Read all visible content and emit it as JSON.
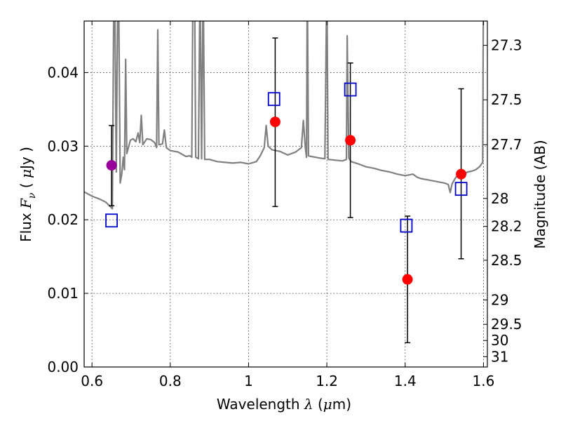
{
  "chart_data": {
    "type": "scatter",
    "xlabel": "Wavelength λ (μm)",
    "ylabel": "Flux F_ν (μJy)",
    "y2label": "Magnitude (AB)",
    "xlim": [
      0.58,
      1.61
    ],
    "ylim": [
      0.0,
      0.047
    ],
    "grid": true,
    "x_ticks": [
      0.6,
      0.8,
      1.0,
      1.2,
      1.4,
      1.6
    ],
    "x_tick_labels": [
      "0.6",
      "0.8",
      "1",
      "1.2",
      "1.4",
      "1.6"
    ],
    "y_ticks": [
      0.0,
      0.01,
      0.02,
      0.03,
      0.04
    ],
    "y_tick_labels": [
      "0.00",
      "0.01",
      "0.02",
      "0.03",
      "0.04"
    ],
    "right_ticks": [
      {
        "label": "27.3",
        "flux": 0.0437
      },
      {
        "label": "27.5",
        "flux": 0.0363
      },
      {
        "label": "27.7",
        "flux": 0.0302
      },
      {
        "label": "28",
        "flux": 0.0229
      },
      {
        "label": "28.2",
        "flux": 0.0191
      },
      {
        "label": "28.5",
        "flux": 0.0145
      },
      {
        "label": "29",
        "flux": 0.0091
      },
      {
        "label": "29.5",
        "flux": 0.0058
      },
      {
        "label": "30",
        "flux": 0.0036
      },
      {
        "label": "31",
        "flux": 0.0014
      }
    ],
    "observed_points": [
      {
        "x": 0.65,
        "y": 0.0274,
        "err_low": 0.0219,
        "err_high": 0.0328,
        "color": "#990099"
      },
      {
        "x": 1.068,
        "y": 0.0333,
        "err_low": 0.0218,
        "err_high": 0.0447,
        "color": "#ff0000"
      },
      {
        "x": 1.26,
        "y": 0.0308,
        "err_low": 0.0203,
        "err_high": 0.0413,
        "color": "#ff0000"
      },
      {
        "x": 1.406,
        "y": 0.0119,
        "err_low": 0.0033,
        "err_high": 0.0205,
        "color": "#ff0000"
      },
      {
        "x": 1.543,
        "y": 0.0262,
        "err_low": 0.0147,
        "err_high": 0.0378,
        "color": "#ff0000"
      }
    ],
    "model_points": [
      {
        "x": 0.65,
        "y": 0.0199
      },
      {
        "x": 1.065,
        "y": 0.0364
      },
      {
        "x": 1.26,
        "y": 0.0377
      },
      {
        "x": 1.403,
        "y": 0.0192
      },
      {
        "x": 1.543,
        "y": 0.0242
      }
    ],
    "spectrum_color": "#808080",
    "spectrum": [
      [
        0.58,
        0.0238
      ],
      [
        0.6,
        0.0232
      ],
      [
        0.62,
        0.0228
      ],
      [
        0.635,
        0.0224
      ],
      [
        0.645,
        0.0219
      ],
      [
        0.652,
        0.0215
      ],
      [
        0.656,
        0.052
      ],
      [
        0.658,
        0.052
      ],
      [
        0.662,
        0.0265
      ],
      [
        0.666,
        0.052
      ],
      [
        0.668,
        0.052
      ],
      [
        0.672,
        0.025
      ],
      [
        0.676,
        0.0262
      ],
      [
        0.68,
        0.0285
      ],
      [
        0.683,
        0.0268
      ],
      [
        0.686,
        0.0418
      ],
      [
        0.689,
        0.029
      ],
      [
        0.693,
        0.0298
      ],
      [
        0.698,
        0.0308
      ],
      [
        0.705,
        0.031
      ],
      [
        0.712,
        0.0306
      ],
      [
        0.718,
        0.0318
      ],
      [
        0.722,
        0.0305
      ],
      [
        0.726,
        0.0342
      ],
      [
        0.73,
        0.0302
      ],
      [
        0.74,
        0.031
      ],
      [
        0.75,
        0.0309
      ],
      [
        0.76,
        0.0305
      ],
      [
        0.765,
        0.0298
      ],
      [
        0.768,
        0.0458
      ],
      [
        0.771,
        0.0302
      ],
      [
        0.78,
        0.0303
      ],
      [
        0.785,
        0.0322
      ],
      [
        0.79,
        0.0298
      ],
      [
        0.8,
        0.0294
      ],
      [
        0.82,
        0.0292
      ],
      [
        0.84,
        0.0286
      ],
      [
        0.85,
        0.0287
      ],
      [
        0.855,
        0.0285
      ],
      [
        0.858,
        0.053
      ],
      [
        0.862,
        0.053
      ],
      [
        0.865,
        0.0285
      ],
      [
        0.872,
        0.0283
      ],
      [
        0.876,
        0.053
      ],
      [
        0.88,
        0.0283
      ],
      [
        0.884,
        0.053
      ],
      [
        0.888,
        0.0282
      ],
      [
        0.9,
        0.0282
      ],
      [
        0.92,
        0.0279
      ],
      [
        0.94,
        0.0278
      ],
      [
        0.96,
        0.0277
      ],
      [
        0.98,
        0.0278
      ],
      [
        1.0,
        0.0276
      ],
      [
        1.02,
        0.0279
      ],
      [
        1.03,
        0.0287
      ],
      [
        1.04,
        0.0298
      ],
      [
        1.045,
        0.0328
      ],
      [
        1.05,
        0.03
      ],
      [
        1.06,
        0.0295
      ],
      [
        1.08,
        0.0293
      ],
      [
        1.1,
        0.0288
      ],
      [
        1.12,
        0.0292
      ],
      [
        1.135,
        0.0298
      ],
      [
        1.14,
        0.0335
      ],
      [
        1.145,
        0.0298
      ],
      [
        1.148,
        0.0285
      ],
      [
        1.15,
        0.053
      ],
      [
        1.153,
        0.0287
      ],
      [
        1.16,
        0.0286
      ],
      [
        1.18,
        0.0284
      ],
      [
        1.195,
        0.0283
      ],
      [
        1.2,
        0.053
      ],
      [
        1.203,
        0.0282
      ],
      [
        1.22,
        0.0281
      ],
      [
        1.24,
        0.028
      ],
      [
        1.25,
        0.0282
      ],
      [
        1.252,
        0.045
      ],
      [
        1.256,
        0.0284
      ],
      [
        1.262,
        0.0279
      ],
      [
        1.28,
        0.0276
      ],
      [
        1.3,
        0.0272
      ],
      [
        1.32,
        0.027
      ],
      [
        1.34,
        0.0267
      ],
      [
        1.36,
        0.0265
      ],
      [
        1.38,
        0.0262
      ],
      [
        1.4,
        0.026
      ],
      [
        1.42,
        0.0262
      ],
      [
        1.43,
        0.0258
      ],
      [
        1.44,
        0.0256
      ],
      [
        1.46,
        0.0254
      ],
      [
        1.48,
        0.0252
      ],
      [
        1.5,
        0.025
      ],
      [
        1.51,
        0.0248
      ],
      [
        1.515,
        0.0237
      ],
      [
        1.52,
        0.0249
      ],
      [
        1.53,
        0.0258
      ],
      [
        1.54,
        0.0263
      ],
      [
        1.55,
        0.0262
      ],
      [
        1.56,
        0.0265
      ],
      [
        1.57,
        0.0266
      ],
      [
        1.58,
        0.0268
      ],
      [
        1.59,
        0.0272
      ],
      [
        1.598,
        0.0278
      ],
      [
        1.6,
        0.052
      ]
    ]
  }
}
